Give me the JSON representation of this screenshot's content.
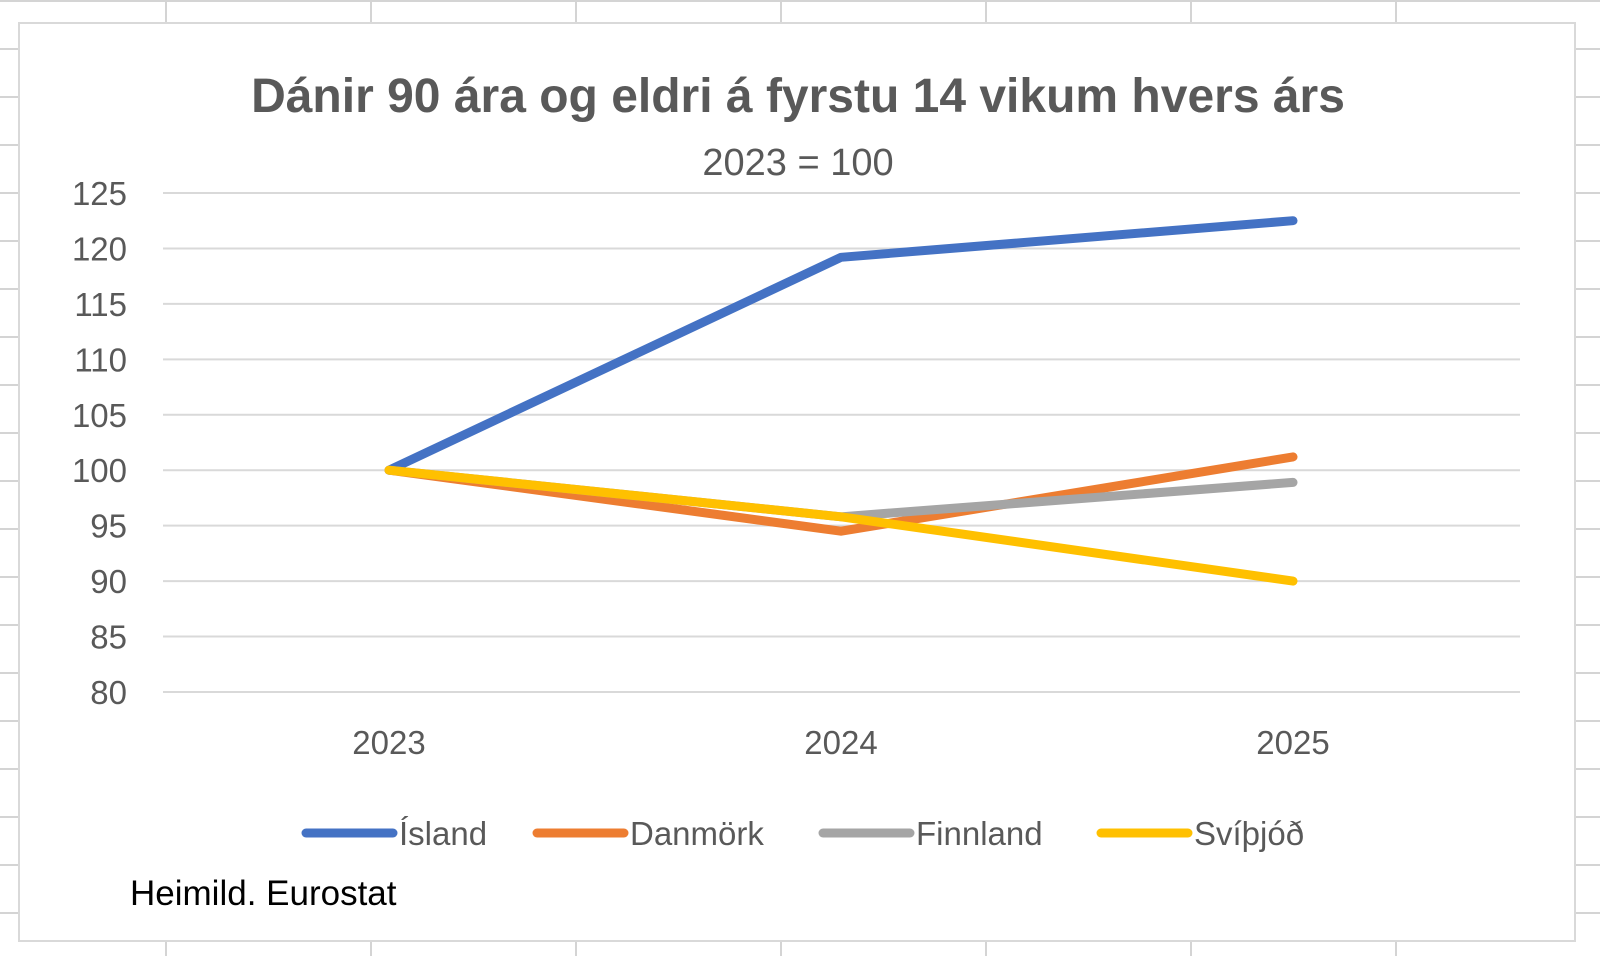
{
  "chart_data": {
    "type": "line",
    "title": "Dánir 90 ára og eldri á fyrstu 14 vikum hvers árs",
    "subtitle": "2023 = 100",
    "xlabel": "",
    "ylabel": "",
    "categories": [
      "2023",
      "2024",
      "2025"
    ],
    "ylim": [
      80,
      125
    ],
    "yticks": [
      "125",
      "120",
      "115",
      "110",
      "105",
      "100",
      "95",
      "90",
      "85",
      "80"
    ],
    "grid": true,
    "legend_position": "bottom",
    "source": "Heimild. Eurostat",
    "series": [
      {
        "name": "Ísland",
        "color": "#4472c4",
        "values": [
          100,
          119.2,
          122.5
        ]
      },
      {
        "name": "Danmörk",
        "color": "#ed7d31",
        "values": [
          100,
          94.5,
          101.2
        ]
      },
      {
        "name": "Finnland",
        "color": "#a5a5a5",
        "values": [
          100,
          95.8,
          98.9
        ]
      },
      {
        "name": "Svíþjóð",
        "color": "#ffc000",
        "values": [
          100,
          95.8,
          90.0
        ]
      }
    ]
  }
}
